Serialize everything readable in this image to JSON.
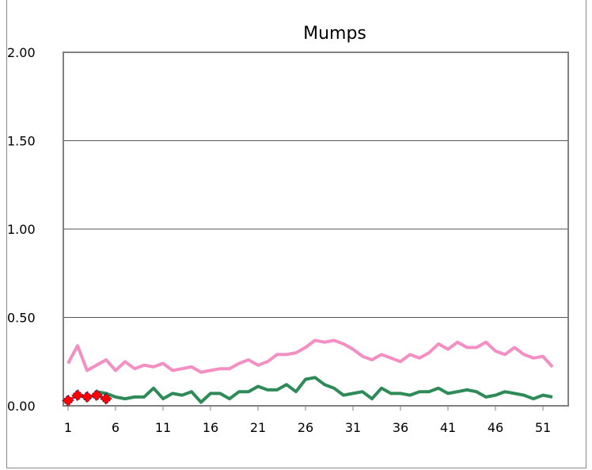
{
  "chart_data": {
    "type": "line",
    "title": "Mumps",
    "xlabel": "",
    "ylabel": "",
    "ylim": [
      0,
      2.0
    ],
    "xlim": [
      1,
      53
    ],
    "y_ticks": [
      "0.00",
      "0.50",
      "1.00",
      "1.50",
      "2.00"
    ],
    "y_tick_values": [
      0,
      0.5,
      1.0,
      1.5,
      2.0
    ],
    "x_ticks": [
      "1",
      "6",
      "11",
      "16",
      "21",
      "26",
      "31",
      "36",
      "41",
      "46",
      "51"
    ],
    "x_tick_values": [
      1,
      6,
      11,
      16,
      21,
      26,
      31,
      36,
      41,
      46,
      51
    ],
    "grid": true,
    "legend": "none",
    "series": [
      {
        "color": "#f48fc3",
        "marker": "none",
        "x": [
          1,
          2,
          3,
          4,
          5,
          6,
          7,
          8,
          9,
          10,
          11,
          12,
          13,
          14,
          15,
          16,
          17,
          18,
          19,
          20,
          21,
          22,
          23,
          24,
          25,
          26,
          27,
          28,
          29,
          30,
          31,
          32,
          33,
          34,
          35,
          36,
          37,
          38,
          39,
          40,
          41,
          42,
          43,
          44,
          45,
          46,
          47,
          48,
          49,
          50,
          51,
          52
        ],
        "values": [
          0.24,
          0.34,
          0.2,
          0.23,
          0.26,
          0.2,
          0.25,
          0.21,
          0.23,
          0.22,
          0.24,
          0.2,
          0.21,
          0.22,
          0.19,
          0.2,
          0.21,
          0.21,
          0.24,
          0.26,
          0.23,
          0.25,
          0.29,
          0.29,
          0.3,
          0.33,
          0.37,
          0.36,
          0.37,
          0.35,
          0.32,
          0.28,
          0.26,
          0.29,
          0.27,
          0.25,
          0.29,
          0.27,
          0.3,
          0.35,
          0.32,
          0.36,
          0.33,
          0.33,
          0.36,
          0.31,
          0.29,
          0.33,
          0.29,
          0.27,
          0.28,
          0.22
        ]
      },
      {
        "color": "#2e8b57",
        "marker": "none",
        "x": [
          4,
          5,
          6,
          7,
          8,
          9,
          10,
          11,
          12,
          13,
          14,
          15,
          16,
          17,
          18,
          19,
          20,
          21,
          22,
          23,
          24,
          25,
          26,
          27,
          28,
          29,
          30,
          31,
          32,
          33,
          34,
          35,
          36,
          37,
          38,
          39,
          40,
          41,
          42,
          43,
          44,
          45,
          46,
          47,
          48,
          49,
          50,
          51,
          52
        ],
        "values": [
          0.08,
          0.07,
          0.05,
          0.04,
          0.05,
          0.05,
          0.1,
          0.04,
          0.07,
          0.06,
          0.08,
          0.02,
          0.07,
          0.07,
          0.04,
          0.08,
          0.08,
          0.11,
          0.09,
          0.09,
          0.12,
          0.08,
          0.15,
          0.16,
          0.12,
          0.1,
          0.06,
          0.07,
          0.08,
          0.04,
          0.1,
          0.07,
          0.07,
          0.06,
          0.08,
          0.08,
          0.1,
          0.07,
          0.08,
          0.09,
          0.08,
          0.05,
          0.06,
          0.08,
          0.07,
          0.06,
          0.04,
          0.06,
          0.05
        ]
      },
      {
        "color": "#ff0000",
        "marker": "diamond",
        "x": [
          1,
          2,
          3,
          4,
          5
        ],
        "values": [
          0.03,
          0.06,
          0.05,
          0.06,
          0.04
        ]
      }
    ]
  }
}
